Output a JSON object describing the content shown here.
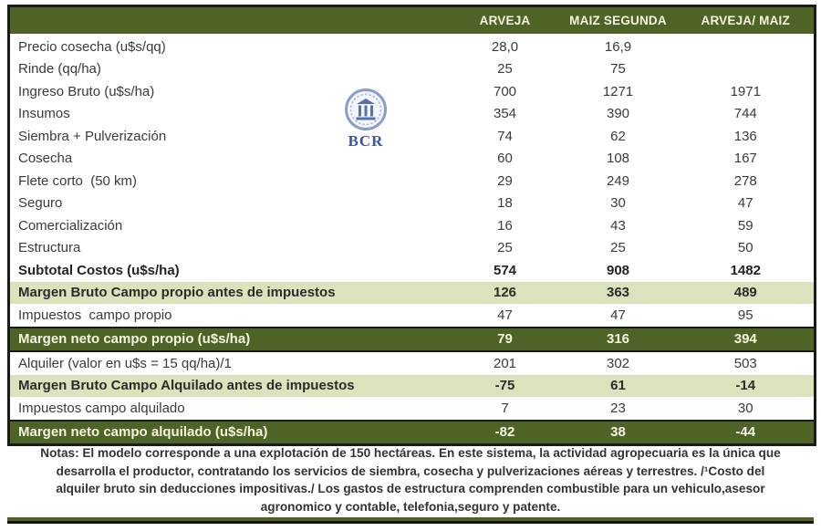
{
  "colors": {
    "dark_green": "#4d6426",
    "light_green": "#d9e4bd",
    "header_text": "#f7f3e1",
    "border_black": "#1b1b1b",
    "logo_blue": "#3d56a0",
    "logo_light_blue": "#8a9cc9"
  },
  "table": {
    "columns": [
      "",
      "ARVEJA",
      "MAIZ SEGUNDA",
      "ARVEJA/ MAIZ"
    ],
    "rows": [
      {
        "label": "Precio cosecha (u$s/qq)",
        "arveja": "28,0",
        "maiz": "16,9",
        "combined": "",
        "style": "normal"
      },
      {
        "label": "Rinde (qq/ha)",
        "arveja": "25",
        "maiz": "75",
        "combined": "",
        "style": "normal"
      },
      {
        "label": "Ingreso Bruto (u$s/ha)",
        "arveja": "700",
        "maiz": "1271",
        "combined": "1971",
        "style": "normal"
      },
      {
        "label": "Insumos",
        "arveja": "354",
        "maiz": "390",
        "combined": "744",
        "style": "normal"
      },
      {
        "label": "Siembra + Pulverización",
        "arveja": "74",
        "maiz": "62",
        "combined": "136",
        "style": "normal"
      },
      {
        "label": "Cosecha",
        "arveja": "60",
        "maiz": "108",
        "combined": "167",
        "style": "normal"
      },
      {
        "label": "Flete corto  (50 km)",
        "arveja": "29",
        "maiz": "249",
        "combined": "278",
        "style": "normal"
      },
      {
        "label": "Seguro",
        "arveja": "18",
        "maiz": "30",
        "combined": "47",
        "style": "normal"
      },
      {
        "label": "Comercialización",
        "arveja": "16",
        "maiz": "43",
        "combined": "59",
        "style": "normal"
      },
      {
        "label": "Estructura",
        "arveja": "25",
        "maiz": "25",
        "combined": "50",
        "style": "normal"
      },
      {
        "label": "Subtotal Costos (u$s/ha)",
        "arveja": "574",
        "maiz": "908",
        "combined": "1482",
        "style": "bold"
      },
      {
        "label": "Margen Bruto Campo propio antes de impuestos",
        "arveja": "126",
        "maiz": "363",
        "combined": "489",
        "style": "light-green"
      },
      {
        "label": "Impuestos  campo propio",
        "arveja": "47",
        "maiz": "47",
        "combined": "95",
        "style": "normal"
      },
      {
        "label": "Margen neto campo propio (u$s/ha)",
        "arveja": "79",
        "maiz": "316",
        "combined": "394",
        "style": "dark-green"
      },
      {
        "label": "Alquiler (valor en u$s = 15 qq/ha)/1",
        "arveja": "201",
        "maiz": "302",
        "combined": "503",
        "style": "normal"
      },
      {
        "label": "Margen Bruto Campo Alquilado antes de impuestos",
        "arveja": "-75",
        "maiz": "61",
        "combined": "-14",
        "style": "light-green"
      },
      {
        "label": "Impuestos campo alquilado",
        "arveja": "7",
        "maiz": "23",
        "combined": "30",
        "style": "normal"
      },
      {
        "label": "Margen neto campo alquilado (u$s/ha)",
        "arveja": "-82",
        "maiz": "38",
        "combined": "-44",
        "style": "dark-green"
      }
    ]
  },
  "logo": {
    "text": "BCR"
  },
  "notes": {
    "lines": [
      "Notas: El modelo corresponde a una explotación de 150 hectáreas. En este sistema, la actividad agropecuaria es la única que",
      "desarrolla el productor, contratando los servicios de siembra, cosecha y pulverizaciones aéreas y terrestres. /¹Costo del",
      "alquiler bruto sin deducciones impositivas./ Los gastos de estructura comprenden combustible para un vehiculo,asesor",
      "agronomico y contable, telefonia,seguro y patente."
    ]
  }
}
